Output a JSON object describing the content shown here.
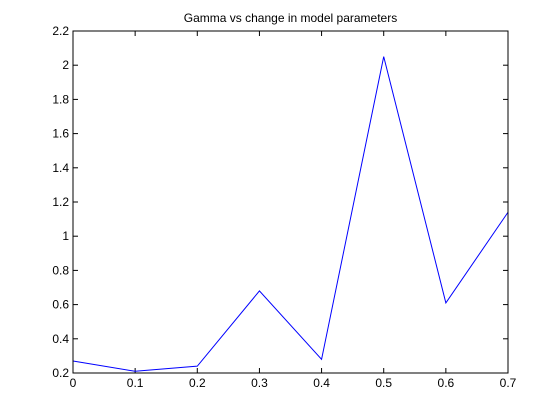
{
  "chart_data": {
    "type": "line",
    "title": "Gamma vs change in model parameters",
    "xlabel": "",
    "ylabel": "",
    "xlim": [
      0,
      0.7
    ],
    "ylim": [
      0.2,
      2.2
    ],
    "x_ticks": [
      0,
      0.1,
      0.2,
      0.3,
      0.4,
      0.5,
      0.6,
      0.7
    ],
    "x_tick_labels": [
      "0",
      "0.1",
      "0.2",
      "0.3",
      "0.4",
      "0.5",
      "0.6",
      "0.7"
    ],
    "y_ticks": [
      0.2,
      0.4,
      0.6,
      0.8,
      1.0,
      1.2,
      1.4,
      1.6,
      1.8,
      2.0,
      2.2
    ],
    "y_tick_labels": [
      "0.2",
      "0.4",
      "0.6",
      "0.8",
      "1",
      "1.2",
      "1.4",
      "1.6",
      "1.8",
      "2",
      "2.2"
    ],
    "grid": false,
    "series": [
      {
        "color": "#0000ff",
        "x": [
          0,
          0.1,
          0.2,
          0.3,
          0.4,
          0.5,
          0.6,
          0.7
        ],
        "y": [
          0.27,
          0.21,
          0.24,
          0.68,
          0.28,
          2.05,
          0.61,
          1.14
        ]
      }
    ]
  }
}
